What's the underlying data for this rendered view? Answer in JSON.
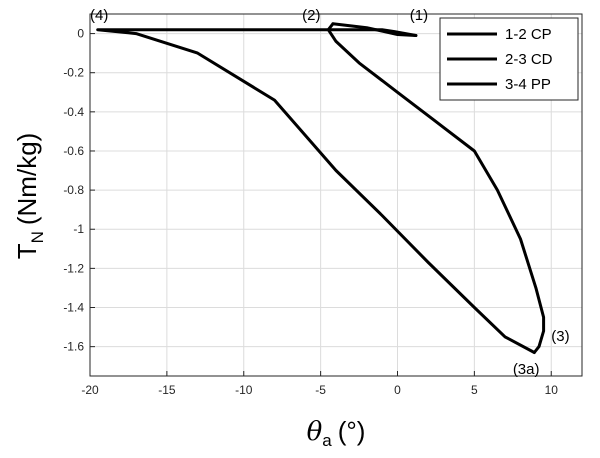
{
  "chart_data": {
    "type": "line",
    "xlabel": "θa (°)",
    "xlabel_symbol": "θ",
    "xlabel_sub": "a",
    "xlabel_unit": "(°)",
    "ylabel": "TN (Nm/kg)",
    "ylabel_main": "T",
    "ylabel_sub": "N",
    "ylabel_unit": "(Nm/kg)",
    "xlim": [
      -20,
      12
    ],
    "ylim": [
      -1.75,
      0.1
    ],
    "xticks": [
      -20,
      -15,
      -10,
      -5,
      0,
      5,
      10
    ],
    "xtick_labels": [
      "-20",
      "-15",
      "-10",
      "-5",
      "0",
      "5",
      "10"
    ],
    "yticks": [
      0,
      -0.2,
      -0.4,
      -0.6,
      -0.8,
      -1,
      -1.2,
      -1.4,
      -1.6
    ],
    "ytick_labels": [
      "0",
      "-0.2",
      "-0.4",
      "-0.6",
      "-0.8",
      "-1",
      "-1.2",
      "-1.4",
      "-1.6"
    ],
    "grid": true,
    "legend_position": "top-right",
    "legend": [
      "1-2 CP",
      "2-3 CD",
      "3-4 PP"
    ],
    "series": [
      {
        "name": "1-2 CP",
        "x": [
          1.2,
          0.0,
          -2.0,
          -4.2
        ],
        "y": [
          -0.01,
          -0.005,
          0.03,
          0.05
        ]
      },
      {
        "name": "2-3 CD",
        "x": [
          -4.2,
          -4.5,
          -4.0,
          -2.5,
          0.0,
          2.5,
          5.0,
          6.5,
          8.0,
          9.0,
          9.5,
          9.5,
          9.2,
          8.9
        ],
        "y": [
          0.05,
          0.02,
          -0.04,
          -0.15,
          -0.3,
          -0.45,
          -0.6,
          -0.8,
          -1.05,
          -1.3,
          -1.45,
          -1.52,
          -1.6,
          -1.63
        ]
      },
      {
        "name": "3-4 PP",
        "x": [
          8.9,
          7.0,
          5.0,
          2.0,
          -1.0,
          -4.0,
          -8.0,
          -13.0,
          -17.0,
          -19.5,
          -15.0,
          -10.0,
          -5.0,
          -1.0,
          -0.2,
          1.2
        ],
        "y": [
          -1.63,
          -1.55,
          -1.4,
          -1.17,
          -0.93,
          -0.7,
          -0.34,
          -0.1,
          0.0,
          0.02,
          0.02,
          0.02,
          0.02,
          0.02,
          0.01,
          -0.01
        ]
      }
    ],
    "annotations": [
      {
        "text": "(4)",
        "x": -20.0,
        "y": 0.07
      },
      {
        "text": "(2)",
        "x": -6.2,
        "y": 0.07
      },
      {
        "text": "(1)",
        "x": 0.8,
        "y": 0.07
      },
      {
        "text": "(3)",
        "x": 10.0,
        "y": -1.57
      },
      {
        "text": "(3a)",
        "x": 7.5,
        "y": -1.74
      }
    ]
  }
}
